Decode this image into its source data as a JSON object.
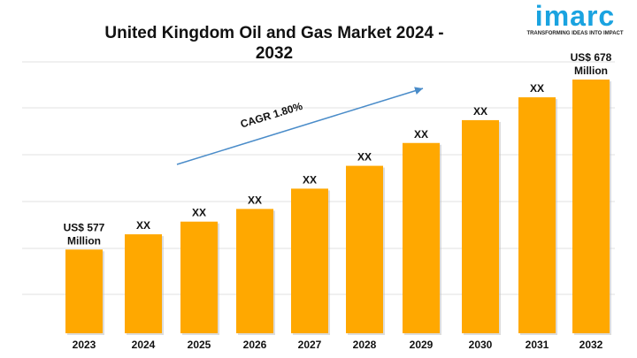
{
  "chart_data": {
    "type": "bar",
    "title": "United Kingdom Oil and Gas Market 2024 - 2032",
    "categories": [
      "2023",
      "2024",
      "2025",
      "2026",
      "2027",
      "2028",
      "2029",
      "2030",
      "2031",
      "2032"
    ],
    "relative_bar_heights": [
      0.33,
      0.39,
      0.44,
      0.49,
      0.57,
      0.66,
      0.75,
      0.84,
      0.93,
      1.0
    ],
    "data_labels": [
      "US$ 577 Million",
      "XX",
      "XX",
      "XX",
      "XX",
      "XX",
      "XX",
      "XX",
      "XX",
      "US$ 678 Million"
    ],
    "annotation": "CAGR 1.80%",
    "bar_color": "#FFA800",
    "grid": true,
    "xlabel": "",
    "ylabel": ""
  },
  "logo": {
    "word": "imarc",
    "tagline": "TRANSFORMING IDEAS INTO IMPACT"
  }
}
